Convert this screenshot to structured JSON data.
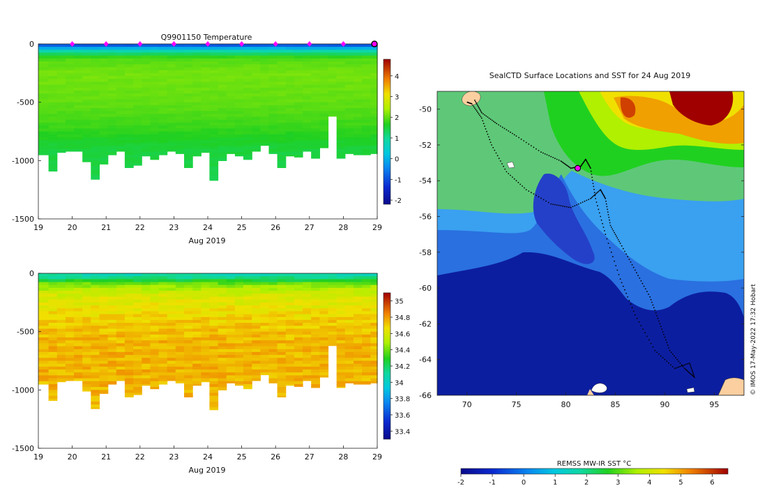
{
  "chart_data": [
    {
      "type": "heatmap",
      "title": "Q9901150  Temperature",
      "xlabel": "Aug 2019",
      "ylabel": "",
      "x_ticks": [
        "19",
        "20",
        "21",
        "22",
        "23",
        "24",
        "25",
        "26",
        "27",
        "28",
        "29"
      ],
      "xlim": [
        19,
        29
      ],
      "y_ticks": [
        "0",
        "-500",
        "-1000",
        "-1500"
      ],
      "ylim": [
        -1500,
        0
      ],
      "colorbar_ticks": [
        "4",
        "3",
        "2",
        "1",
        "0",
        "-1",
        "-2"
      ],
      "colorbar_range": [
        -2.2,
        4.8
      ],
      "profile_marker_days": [
        20,
        21,
        22,
        23,
        24,
        25,
        26,
        27,
        28
      ],
      "current_profile_day": 29,
      "column_times": [
        19.0,
        19.3,
        19.55,
        19.8,
        20.05,
        20.3,
        20.55,
        20.8,
        21.05,
        21.3,
        21.55,
        21.8,
        22.05,
        22.3,
        22.55,
        22.8,
        23.05,
        23.3,
        23.55,
        23.8,
        24.05,
        24.3,
        24.55,
        24.8,
        25.05,
        25.3,
        25.55,
        25.8,
        26.05,
        26.3,
        26.55,
        26.8,
        27.05,
        27.3,
        27.55,
        27.8,
        28.05,
        28.3,
        28.55,
        28.8,
        29.0
      ],
      "profile_max_depth_m": [
        950,
        1090,
        930,
        920,
        920,
        1010,
        1160,
        1030,
        950,
        920,
        1060,
        1040,
        960,
        990,
        950,
        920,
        940,
        1060,
        960,
        930,
        1170,
        1000,
        940,
        960,
        990,
        920,
        870,
        940,
        1060,
        960,
        970,
        920,
        980,
        890,
        620,
        980,
        940,
        950,
        950,
        940,
        940
      ],
      "temperature_depth_m": [
        0,
        60,
        120,
        250,
        500,
        700,
        900,
        1200
      ],
      "temperature_c": [
        -1.3,
        0.8,
        1.9,
        2.1,
        2.0,
        1.8,
        1.5,
        1.4
      ],
      "grid": false
    },
    {
      "type": "heatmap",
      "title": "",
      "xlabel": "Aug 2019",
      "ylabel": "",
      "x_ticks": [
        "19",
        "20",
        "21",
        "22",
        "23",
        "24",
        "25",
        "26",
        "27",
        "28",
        "29"
      ],
      "xlim": [
        19,
        29
      ],
      "y_ticks": [
        "0",
        "-500",
        "-1000",
        "-1500"
      ],
      "ylim": [
        -1500,
        0
      ],
      "colorbar_ticks": [
        "35",
        "34.8",
        "34.6",
        "34.4",
        "34.2",
        "34",
        "33.8",
        "33.6",
        "33.4"
      ],
      "colorbar_range": [
        33.3,
        35.1
      ],
      "salinity_depth_m": [
        0,
        40,
        100,
        200,
        400,
        600,
        800,
        1200
      ],
      "salinity_psu": [
        34.05,
        34.15,
        34.45,
        34.6,
        34.7,
        34.75,
        34.75,
        34.75
      ],
      "grid": false
    },
    {
      "type": "heatmap",
      "title": "SealCTD Surface Locations and SST for 24 Aug 2019",
      "xlabel": "",
      "ylabel": "",
      "x_ticks": [
        "70",
        "75",
        "80",
        "85",
        "90",
        "95"
      ],
      "xlim": [
        67,
        98
      ],
      "y_ticks": [
        "-50",
        "-52",
        "-54",
        "-56",
        "-58",
        "-60",
        "-62",
        "-64",
        "-66"
      ],
      "ylim": [
        -66,
        -49
      ],
      "colorbar_label": "REMSS MW-IR SST °C",
      "colorbar_ticks": [
        "-2",
        "-1",
        "0",
        "1",
        "2",
        "3",
        "4",
        "5",
        "6"
      ],
      "colorbar_range": [
        -2.0,
        6.5
      ],
      "current_position": {
        "lon": 81.2,
        "lat": -53.3
      },
      "track_lon": [
        70.8,
        71.5,
        73.0,
        75.0,
        77.5,
        79.5,
        80.5,
        81.5,
        82.0,
        82.5,
        83.0,
        84.0,
        85.5,
        87.0,
        89.0,
        91.0,
        92.5,
        93.0,
        92.0,
        90.5,
        89.5,
        88.5,
        87.0,
        85.5,
        84.5,
        84.0,
        83.5,
        82.5,
        80.5,
        78.5,
        76.0,
        74.0,
        72.5,
        71.5,
        70.5,
        70.0
      ],
      "track_lat": [
        -49.5,
        -50.2,
        -50.8,
        -51.5,
        -52.4,
        -52.9,
        -53.3,
        -53.2,
        -52.8,
        -53.3,
        -55.0,
        -57.0,
        -59.5,
        -61.5,
        -63.5,
        -64.5,
        -64.2,
        -65.0,
        -64.5,
        -63.5,
        -62.0,
        -60.5,
        -59.0,
        -57.5,
        -56.5,
        -55.0,
        -54.5,
        -55.0,
        -55.5,
        -55.3,
        -54.5,
        -53.5,
        -52.0,
        -50.5,
        -49.7,
        -49.6
      ],
      "grid": false
    }
  ],
  "credit": "© IMOS 17-May-2022 17:32 Hobart",
  "colors": {
    "ice_shelf": "#0c1ea0",
    "land": "#fbcf9f",
    "track": "#000000",
    "marker_magenta": "#ff00ff",
    "current_marker_fill": "#ff00ff"
  }
}
